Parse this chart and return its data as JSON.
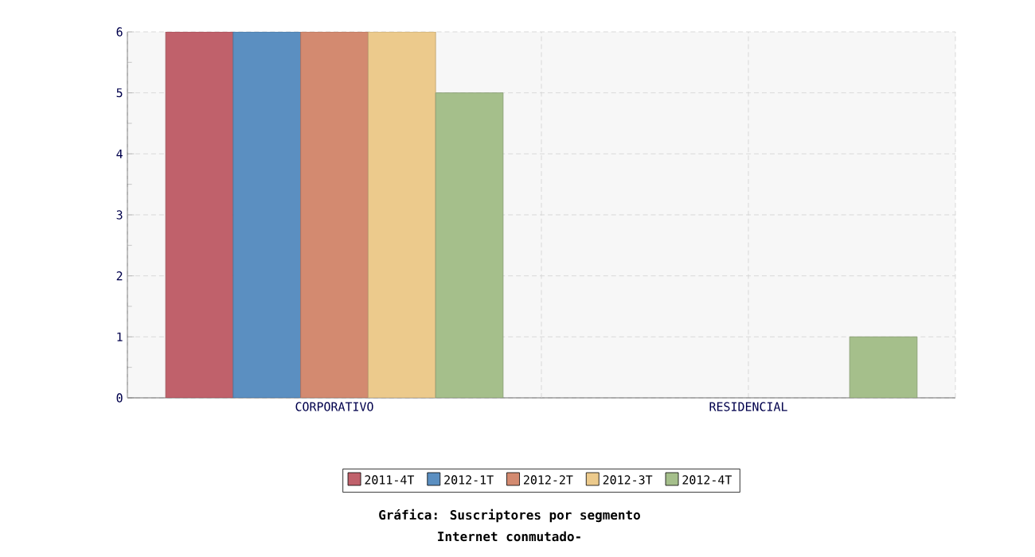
{
  "chart_data": {
    "type": "bar",
    "title": "Gráfica: Suscriptores por segmento",
    "subtitle": "Internet conmutado-",
    "categories": [
      "CORPORATIVO",
      "RESIDENCIAL"
    ],
    "series": [
      {
        "name": "2011-4T",
        "color": "#c0616b",
        "values": [
          6,
          null
        ]
      },
      {
        "name": "2012-1T",
        "color": "#5b8fc1",
        "values": [
          6,
          null
        ]
      },
      {
        "name": "2012-2T",
        "color": "#d38a70",
        "values": [
          6,
          null
        ]
      },
      {
        "name": "2012-3T",
        "color": "#ecca8c",
        "values": [
          6,
          null
        ]
      },
      {
        "name": "2012-4T",
        "color": "#a5bf8b",
        "values": [
          5,
          1
        ]
      }
    ],
    "ylim": [
      0,
      6
    ],
    "yticks": [
      0,
      1,
      2,
      3,
      4,
      5,
      6
    ],
    "grid": true,
    "legend": "bottom"
  }
}
